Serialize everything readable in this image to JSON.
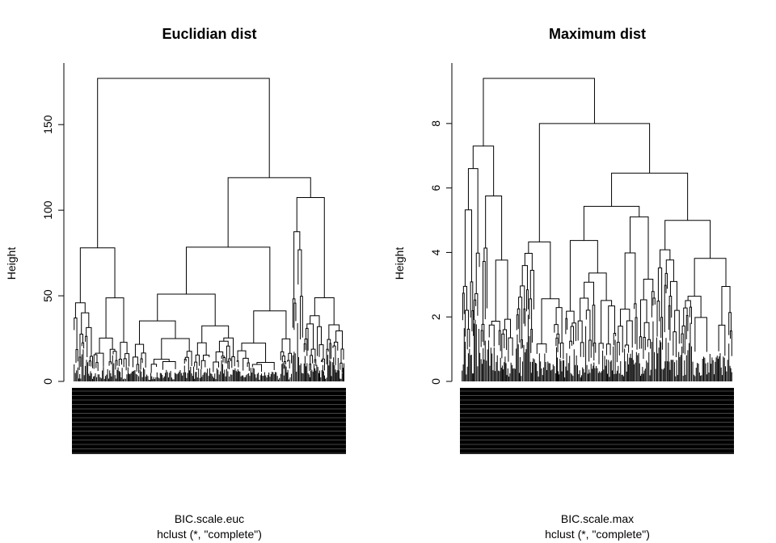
{
  "chart_data": [
    {
      "type": "dendrogram",
      "title": "Euclidian dist",
      "ylabel": "Height",
      "xlabel": "BIC.scale.euc",
      "sublabel": "hclust (*, \"complete\")",
      "ylim": [
        0,
        180
      ],
      "yticks": [
        0,
        50,
        100,
        150
      ],
      "ytick_labels": [
        "0",
        "50",
        "100",
        "150"
      ],
      "merge_heights": [
        177,
        119,
        78,
        74,
        61,
        57,
        54,
        52,
        50,
        44,
        40,
        34,
        30,
        28
      ],
      "root_height": 177,
      "leaf_labels_overplotted": true
    },
    {
      "type": "dendrogram",
      "title": "Maximum dist",
      "ylabel": "Height",
      "xlabel": "BIC.scale.max",
      "sublabel": "hclust (*, \"complete\")",
      "ylim": [
        0,
        9.6
      ],
      "yticks": [
        0,
        2,
        4,
        6,
        8
      ],
      "ytick_labels": [
        "0",
        "2",
        "4",
        "6",
        "8"
      ],
      "merge_heights": [
        9.4,
        8.0,
        7.3,
        7.0,
        6.4,
        6.0,
        5.5,
        5.2,
        4.9,
        4.7,
        4.2,
        3.9,
        3.6,
        3.1
      ],
      "root_height": 9.4,
      "leaf_labels_overplotted": true
    }
  ]
}
